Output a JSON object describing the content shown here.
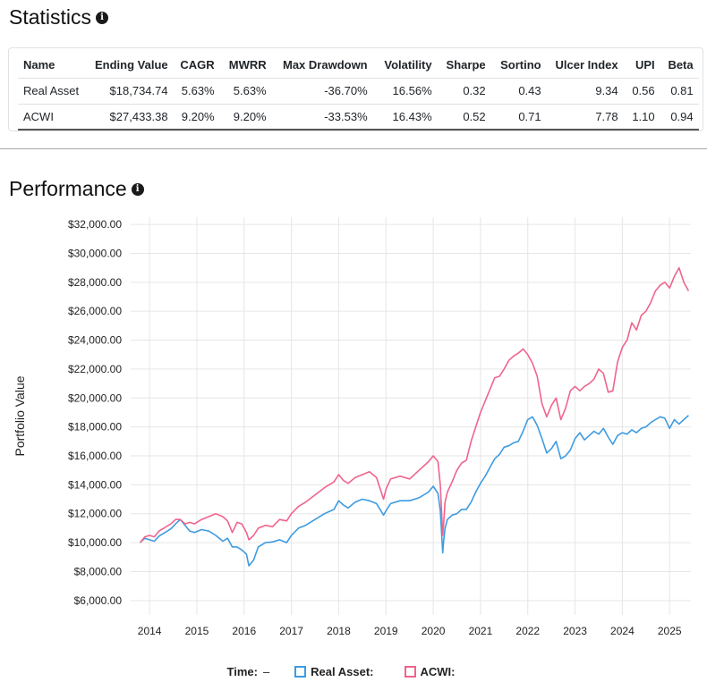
{
  "statistics": {
    "title": "Statistics",
    "info_icon": "info-icon",
    "columns": [
      "Name",
      "Ending Value",
      "CAGR",
      "MWRR",
      "Max Drawdown",
      "Volatility",
      "Sharpe",
      "Sortino",
      "Ulcer Index",
      "UPI",
      "Beta"
    ],
    "rows": [
      [
        "Real Asset",
        "$18,734.74",
        "5.63%",
        "5.63%",
        "-36.70%",
        "16.56%",
        "0.32",
        "0.43",
        "9.34",
        "0.56",
        "0.81"
      ],
      [
        "ACWI",
        "$27,433.38",
        "9.20%",
        "9.20%",
        "-33.53%",
        "16.43%",
        "0.52",
        "0.71",
        "7.78",
        "1.10",
        "0.94"
      ]
    ]
  },
  "performance": {
    "title": "Performance",
    "info_icon": "info-icon"
  },
  "legend": {
    "time_label": "Time:",
    "time_value": "–",
    "series": [
      {
        "label": "Real Asset:",
        "color": "#3d9be0"
      },
      {
        "label": "ACWI:",
        "color": "#f0648c"
      }
    ]
  },
  "chart_data": {
    "type": "line",
    "ylabel": "Portfolio Value",
    "xlabel": "",
    "ylim": [
      5000,
      32500
    ],
    "xlim": [
      2013.6,
      2025.45
    ],
    "y_ticks": [
      "$6,000.00",
      "$8,000.00",
      "$10,000.00",
      "$12,000.00",
      "$14,000.00",
      "$16,000.00",
      "$18,000.00",
      "$20,000.00",
      "$22,000.00",
      "$24,000.00",
      "$26,000.00",
      "$28,000.00",
      "$30,000.00",
      "$32,000.00"
    ],
    "x_ticks": [
      "2014",
      "2015",
      "2016",
      "2017",
      "2018",
      "2019",
      "2020",
      "2021",
      "2022",
      "2023",
      "2024",
      "2025"
    ],
    "grid": true,
    "series": [
      {
        "name": "Real Asset",
        "color": "#3d9be0",
        "x": [
          2013.8,
          2013.9,
          2014.0,
          2014.1,
          2014.2,
          2014.3,
          2014.45,
          2014.55,
          2014.65,
          2014.75,
          2014.85,
          2014.95,
          2015.1,
          2015.25,
          2015.4,
          2015.55,
          2015.65,
          2015.75,
          2015.85,
          2015.95,
          2016.05,
          2016.1,
          2016.2,
          2016.3,
          2016.45,
          2016.6,
          2016.75,
          2016.9,
          2017.0,
          2017.15,
          2017.3,
          2017.5,
          2017.7,
          2017.9,
          2018.0,
          2018.1,
          2018.2,
          2018.35,
          2018.5,
          2018.65,
          2018.8,
          2018.95,
          2019.0,
          2019.1,
          2019.3,
          2019.5,
          2019.7,
          2019.9,
          2020.0,
          2020.1,
          2020.15,
          2020.2,
          2020.22,
          2020.25,
          2020.3,
          2020.4,
          2020.5,
          2020.6,
          2020.7,
          2020.8,
          2020.9,
          2021.0,
          2021.1,
          2021.2,
          2021.3,
          2021.4,
          2021.5,
          2021.6,
          2021.7,
          2021.8,
          2021.9,
          2022.0,
          2022.1,
          2022.2,
          2022.3,
          2022.4,
          2022.5,
          2022.6,
          2022.7,
          2022.8,
          2022.9,
          2023.0,
          2023.1,
          2023.2,
          2023.3,
          2023.4,
          2023.5,
          2023.6,
          2023.7,
          2023.8,
          2023.9,
          2024.0,
          2024.1,
          2024.2,
          2024.3,
          2024.4,
          2024.5,
          2024.6,
          2024.7,
          2024.8,
          2024.9,
          2025.0,
          2025.1,
          2025.2,
          2025.3,
          2025.4
        ],
        "y": [
          10000,
          10300,
          10200,
          10100,
          10450,
          10650,
          10950,
          11300,
          11600,
          11200,
          10800,
          10700,
          10900,
          10800,
          10500,
          10100,
          10300,
          9700,
          9700,
          9500,
          9200,
          8400,
          8800,
          9700,
          10000,
          10050,
          10200,
          10000,
          10500,
          11000,
          11200,
          11600,
          12000,
          12300,
          12900,
          12600,
          12400,
          12800,
          13000,
          12900,
          12700,
          11900,
          12200,
          12700,
          12900,
          12900,
          13100,
          13500,
          13900,
          13400,
          12200,
          9300,
          10100,
          11000,
          11600,
          11900,
          12000,
          12300,
          12300,
          12800,
          13500,
          14100,
          14600,
          15200,
          15800,
          16100,
          16600,
          16700,
          16900,
          17000,
          17700,
          18500,
          18700,
          18100,
          17200,
          16200,
          16500,
          17000,
          15800,
          16000,
          16400,
          17200,
          17600,
          17100,
          17400,
          17700,
          17500,
          17900,
          17300,
          16800,
          17400,
          17600,
          17500,
          17800,
          17600,
          17900,
          18000,
          18300,
          18500,
          18700,
          18600,
          17900,
          18500,
          18200,
          18500,
          18800
        ]
      },
      {
        "name": "ACWI",
        "color": "#f0648c",
        "x": [
          2013.8,
          2013.9,
          2014.0,
          2014.1,
          2014.2,
          2014.3,
          2014.45,
          2014.55,
          2014.65,
          2014.75,
          2014.85,
          2014.95,
          2015.1,
          2015.25,
          2015.4,
          2015.55,
          2015.65,
          2015.75,
          2015.85,
          2015.95,
          2016.05,
          2016.1,
          2016.2,
          2016.3,
          2016.45,
          2016.6,
          2016.75,
          2016.9,
          2017.0,
          2017.15,
          2017.3,
          2017.5,
          2017.7,
          2017.9,
          2018.0,
          2018.1,
          2018.2,
          2018.35,
          2018.5,
          2018.65,
          2018.8,
          2018.95,
          2019.0,
          2019.1,
          2019.3,
          2019.5,
          2019.7,
          2019.9,
          2020.0,
          2020.1,
          2020.15,
          2020.2,
          2020.22,
          2020.25,
          2020.3,
          2020.4,
          2020.5,
          2020.6,
          2020.7,
          2020.8,
          2020.9,
          2021.0,
          2021.1,
          2021.2,
          2021.3,
          2021.4,
          2021.5,
          2021.6,
          2021.7,
          2021.8,
          2021.9,
          2022.0,
          2022.1,
          2022.2,
          2022.3,
          2022.4,
          2022.5,
          2022.6,
          2022.7,
          2022.8,
          2022.9,
          2023.0,
          2023.1,
          2023.2,
          2023.3,
          2023.4,
          2023.5,
          2023.6,
          2023.7,
          2023.8,
          2023.9,
          2024.0,
          2024.1,
          2024.2,
          2024.3,
          2024.4,
          2024.5,
          2024.6,
          2024.7,
          2024.8,
          2024.9,
          2025.0,
          2025.1,
          2025.2,
          2025.3,
          2025.4
        ],
        "y": [
          10000,
          10400,
          10500,
          10400,
          10800,
          11000,
          11300,
          11600,
          11600,
          11300,
          11400,
          11300,
          11600,
          11800,
          12000,
          11800,
          11500,
          10700,
          11400,
          11300,
          10700,
          10200,
          10500,
          11000,
          11200,
          11100,
          11600,
          11500,
          12000,
          12500,
          12800,
          13300,
          13800,
          14200,
          14700,
          14300,
          14100,
          14500,
          14700,
          14900,
          14500,
          13000,
          13700,
          14400,
          14600,
          14400,
          15000,
          15600,
          16000,
          15600,
          14000,
          10500,
          11300,
          12800,
          13500,
          14200,
          15000,
          15500,
          15700,
          17000,
          18000,
          19000,
          19800,
          20600,
          21400,
          21500,
          22000,
          22600,
          22900,
          23100,
          23400,
          23000,
          22400,
          21500,
          19600,
          18700,
          19500,
          20000,
          18500,
          19300,
          20500,
          20800,
          20500,
          20800,
          21000,
          21300,
          22000,
          21700,
          20400,
          20500,
          22500,
          23500,
          24000,
          25200,
          24700,
          25700,
          26000,
          26600,
          27400,
          27800,
          28000,
          27600,
          28400,
          29000,
          28000,
          27400
        ]
      }
    ]
  }
}
